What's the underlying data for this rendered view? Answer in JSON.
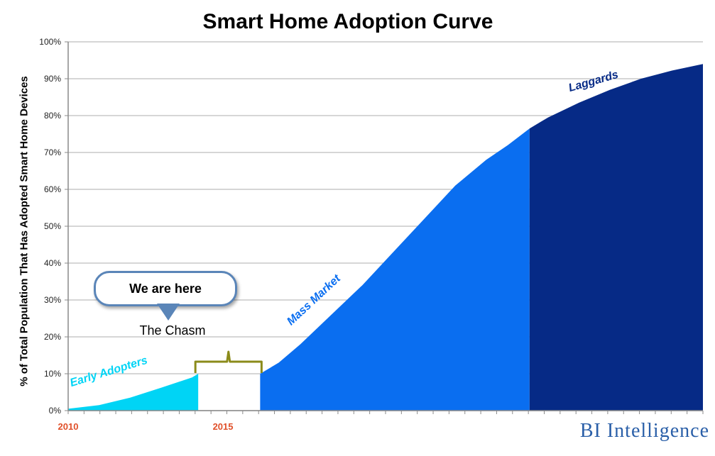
{
  "chart_data": {
    "type": "area",
    "title": "Smart Home Adoption Curve",
    "xlabel": "",
    "ylabel": "% of Total Population That Has Adopted Smart Home Devices",
    "ylim": [
      0,
      100
    ],
    "y_ticks": [
      "0%",
      "10%",
      "20%",
      "30%",
      "40%",
      "50%",
      "60%",
      "70%",
      "80%",
      "90%",
      "100%"
    ],
    "x_ticks": [
      {
        "label": "2010",
        "value": 2010
      },
      {
        "label": "2015",
        "value": 2015
      }
    ],
    "x_range": [
      2010,
      2030.5
    ],
    "grid": true,
    "series": [
      {
        "name": "Early Adopters",
        "color": "#00d4f5",
        "points": [
          [
            2010,
            0.5
          ],
          [
            2011,
            1.5
          ],
          [
            2012,
            3.5
          ],
          [
            2013,
            6.2
          ],
          [
            2014,
            9.0
          ],
          [
            2014.2,
            10.0
          ]
        ]
      },
      {
        "name": "Mass Market",
        "color": "#0a6ef0",
        "points": [
          [
            2016.2,
            10.0
          ],
          [
            2016.8,
            13
          ],
          [
            2017.5,
            18
          ],
          [
            2018.5,
            26
          ],
          [
            2019.5,
            34
          ],
          [
            2020.5,
            43
          ],
          [
            2021.5,
            52
          ],
          [
            2022.5,
            61
          ],
          [
            2023.5,
            68
          ],
          [
            2024.2,
            72
          ],
          [
            2024.9,
            76.5
          ]
        ]
      },
      {
        "name": "Laggards",
        "color": "#062a86",
        "points": [
          [
            2024.9,
            76.5
          ],
          [
            2025.5,
            79.5
          ],
          [
            2026.5,
            83.5
          ],
          [
            2027.5,
            87
          ],
          [
            2028.5,
            90
          ],
          [
            2029.5,
            92.2
          ],
          [
            2030.5,
            94
          ]
        ]
      }
    ],
    "annotations": [
      {
        "text": "We are here"
      },
      {
        "text": "The Chasm"
      }
    ]
  },
  "brand": {
    "text": "BI Intelligence",
    "color": "#2a5fa8"
  }
}
